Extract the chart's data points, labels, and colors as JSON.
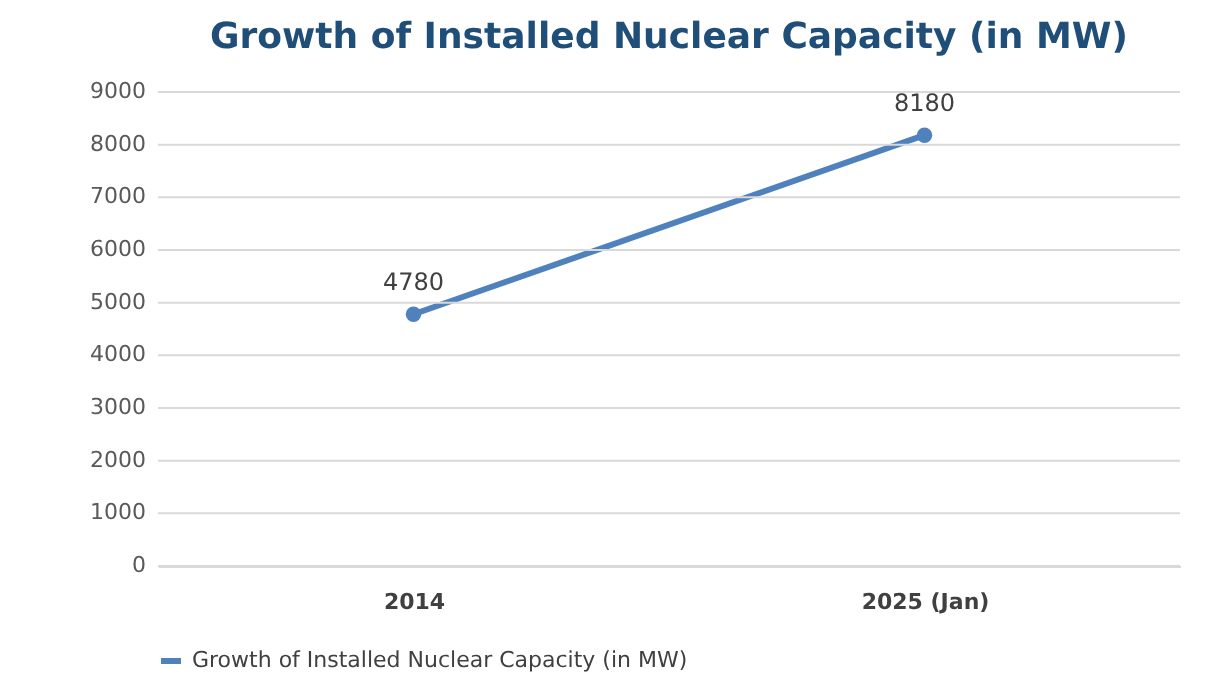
{
  "chart_data": {
    "type": "line",
    "title": "Growth of Installed Nuclear Capacity (in MW)",
    "categories": [
      "2014",
      "2025 (Jan)"
    ],
    "series": [
      {
        "name": "Growth of Installed Nuclear Capacity (in MW)",
        "color": "#4f81bd",
        "values": [
          4780,
          8180
        ]
      }
    ],
    "ylim": [
      0,
      9000
    ],
    "yticks": [
      0,
      1000,
      2000,
      3000,
      4000,
      5000,
      6000,
      7000,
      8000,
      9000
    ],
    "grid": "y",
    "legend": "bottom",
    "marker": "circle",
    "line_style": "solid",
    "data_labels": true
  }
}
